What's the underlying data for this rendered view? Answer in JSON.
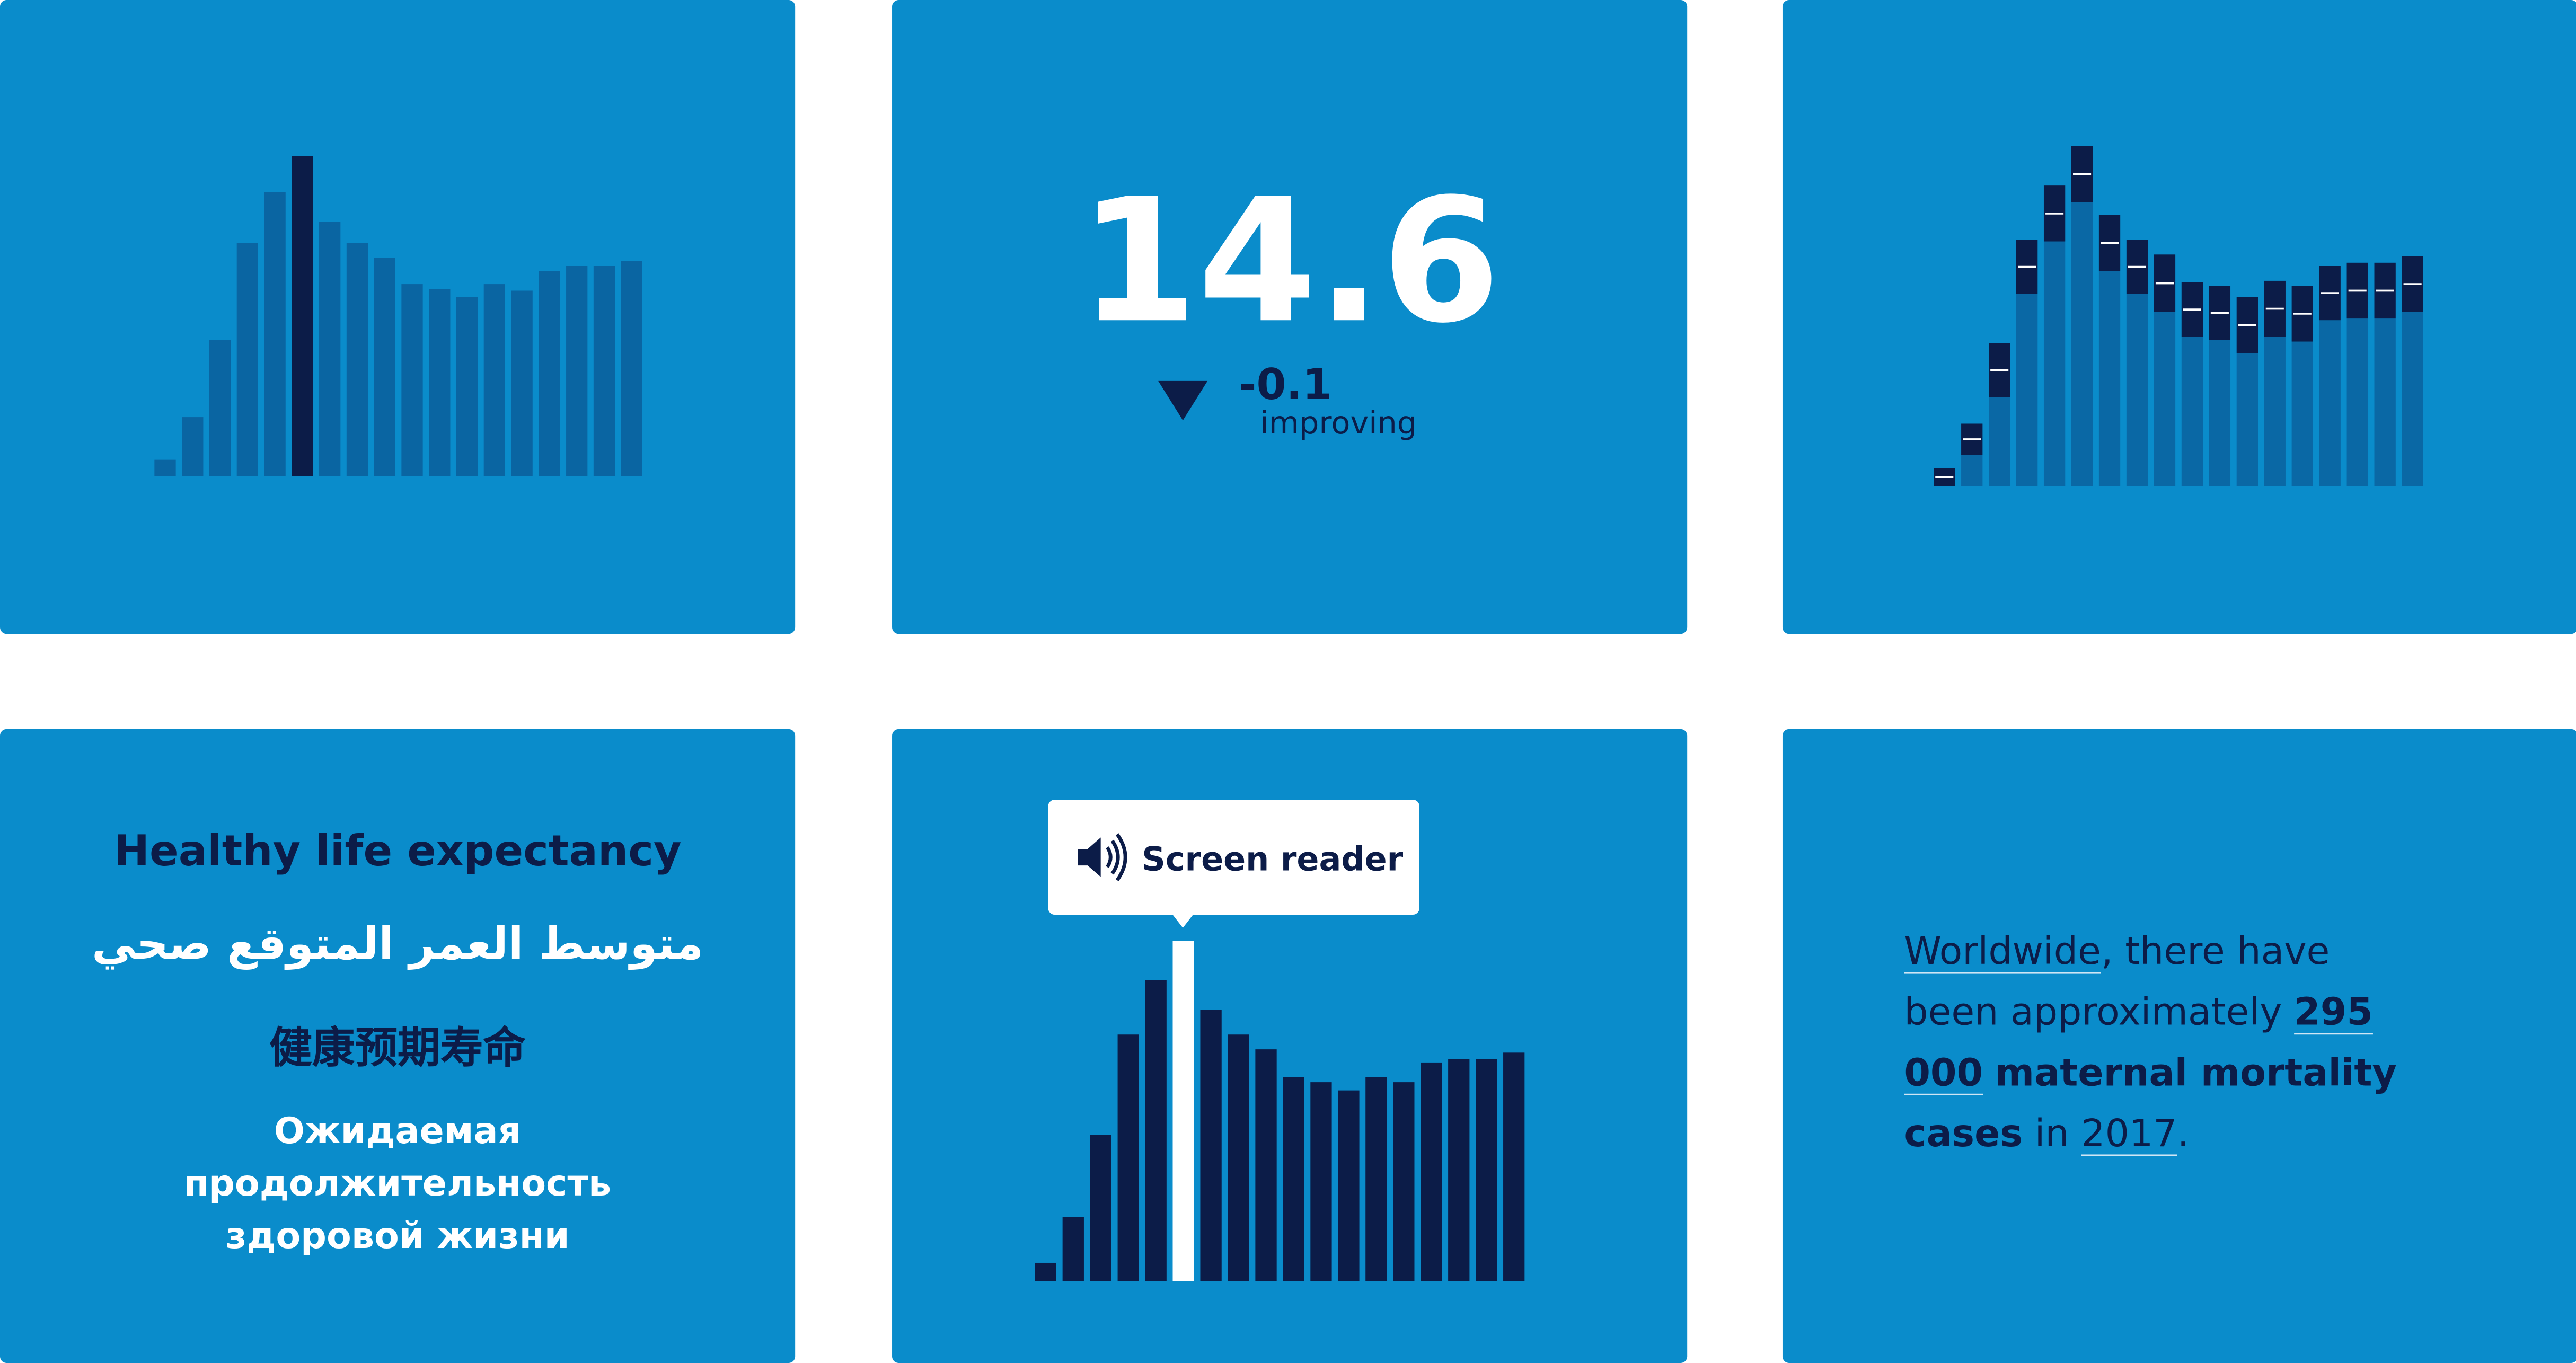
{
  "chart_data": [
    {
      "type": "bar",
      "ylim": [
        0,
        220
      ],
      "values": [
        10,
        36,
        83,
        142,
        173,
        195,
        155,
        142,
        133,
        117,
        114,
        109,
        117,
        113,
        125,
        128,
        128,
        131
      ],
      "colors": [
        "#0a65a2",
        "#0a65a2",
        "#0a65a2",
        "#0a65a2",
        "#0a65a2",
        "#0c1c48",
        "#0a65a2",
        "#0a65a2",
        "#0a65a2",
        "#0a65a2",
        "#0a65a2",
        "#0a65a2",
        "#0a65a2",
        "#0a65a2",
        "#0a65a2",
        "#0a65a2",
        "#0a65a2",
        "#0a65a2"
      ]
    },
    {
      "type": "stacked_bar",
      "ylim": [
        0,
        220
      ],
      "series": [
        {
          "color": "#0a68a5",
          "values": [
            0,
            19,
            54,
            117,
            149,
            173,
            131,
            117,
            106,
            91,
            89,
            81,
            91,
            88,
            101,
            102,
            102,
            106
          ]
        },
        {
          "color": "#0c1c48",
          "values": [
            11,
            19,
            33,
            33,
            34,
            34,
            34,
            33,
            35,
            33,
            33,
            34,
            34,
            34,
            33,
            34,
            34,
            34
          ]
        }
      ]
    },
    {
      "type": "bar",
      "ylim": [
        0,
        220
      ],
      "values": [
        11,
        39,
        89,
        150,
        183,
        207,
        165,
        150,
        141,
        124,
        121,
        116,
        124,
        121,
        133,
        135,
        135,
        139
      ],
      "colors": [
        "#0c1c48",
        "#0c1c48",
        "#0c1c48",
        "#0c1c48",
        "#0c1c48",
        "#ffffff",
        "#0c1c48",
        "#0c1c48",
        "#0c1c48",
        "#0c1c48",
        "#0c1c48",
        "#0c1c48",
        "#0c1c48",
        "#0c1c48",
        "#0c1c48",
        "#0c1c48",
        "#0c1c48",
        "#0c1c48"
      ]
    }
  ],
  "kpi": {
    "value": 14.6,
    "change": -0.1,
    "status": "improving"
  },
  "languages": [
    "Healthy life expectancy",
    "متوسط العمر المتوقع صحي",
    "健康预期寿命",
    "Ожидаемая продолжительность здоровой жизни"
  ],
  "tooltip": "Screen reader",
  "sentence": [
    "Worldwide",
    ", there have been approximately",
    "295 000",
    "maternal mortality cases",
    "in",
    "2017",
    "."
  ]
}
